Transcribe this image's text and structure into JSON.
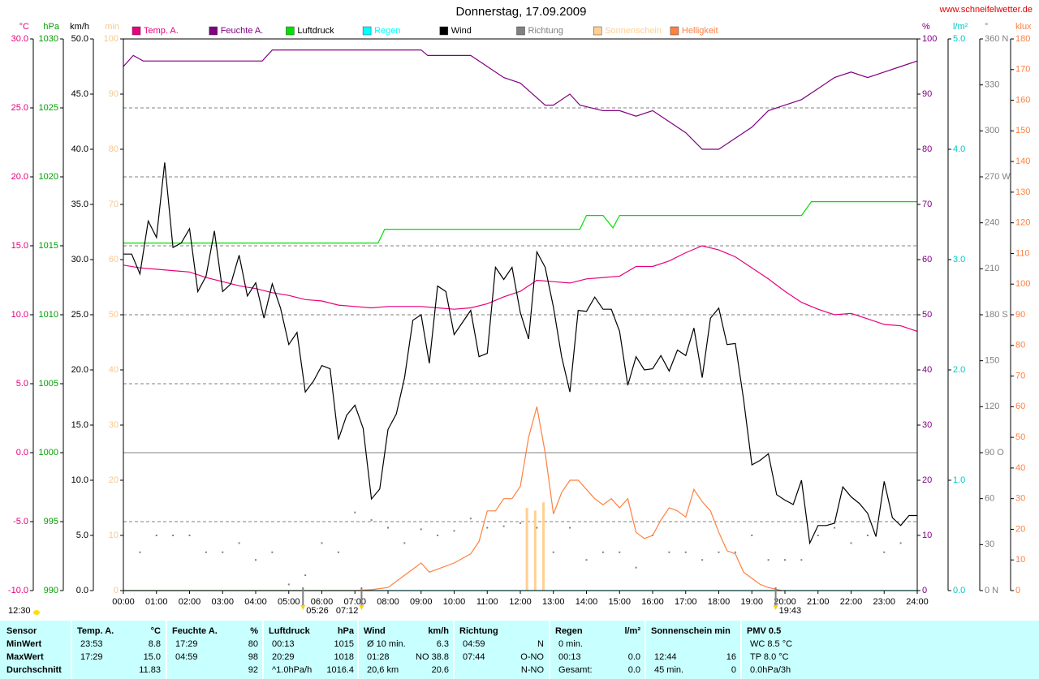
{
  "chart_data": {
    "type": "line",
    "title": "Donnerstag, 17.09.2009",
    "source": "www.schneifelwetter.de",
    "day_length": "12:30",
    "xlim": [
      0,
      24
    ],
    "xticks": [
      {
        "value": 0,
        "label": "00:00"
      },
      {
        "value": 1,
        "label": "01:00"
      },
      {
        "value": 2,
        "label": "02:00"
      },
      {
        "value": 3,
        "label": "03:00"
      },
      {
        "value": 4,
        "label": "04:00"
      },
      {
        "value": 5,
        "label": "05:00"
      },
      {
        "value": 6,
        "label": "06:00"
      },
      {
        "value": 7,
        "label": "07:00"
      },
      {
        "value": 8,
        "label": "08:00"
      },
      {
        "value": 9,
        "label": "09:00"
      },
      {
        "value": 10,
        "label": "10:00"
      },
      {
        "value": 11,
        "label": "11:00"
      },
      {
        "value": 12,
        "label": "12:00"
      },
      {
        "value": 13,
        "label": "13:00"
      },
      {
        "value": 14,
        "label": "14:00"
      },
      {
        "value": 15,
        "label": "15:00"
      },
      {
        "value": 16,
        "label": "16:00"
      },
      {
        "value": 17,
        "label": "17:00"
      },
      {
        "value": 18,
        "label": "18:00"
      },
      {
        "value": 19,
        "label": "19:00"
      },
      {
        "value": 20,
        "label": "20:00"
      },
      {
        "value": 21,
        "label": "21:00"
      },
      {
        "value": 22,
        "label": "22:00"
      },
      {
        "value": 23,
        "label": "23:00"
      },
      {
        "value": 24,
        "label": "24:00"
      }
    ],
    "axes": {
      "y1": {
        "unit": "°C",
        "side": "left",
        "color": "#e8007c",
        "grid": true,
        "lim": [
          -10,
          30
        ],
        "ticks": [
          {
            "value": -10,
            "label": "-10.0"
          },
          {
            "value": -5,
            "label": "-5.0"
          },
          {
            "value": 0,
            "label": "0.0"
          },
          {
            "value": 5,
            "label": "5.0"
          },
          {
            "value": 10,
            "label": "10.0"
          },
          {
            "value": 15,
            "label": "15.0"
          },
          {
            "value": 20,
            "label": "20.0"
          },
          {
            "value": 25,
            "label": "25.0"
          },
          {
            "value": 30,
            "label": "30.0"
          }
        ]
      },
      "y2": {
        "unit": "hPa",
        "side": "left",
        "color": "#00a000",
        "lim": [
          990,
          1030
        ],
        "ticks": [
          990,
          995,
          1000,
          1005,
          1010,
          1015,
          1020,
          1025,
          1030
        ]
      },
      "y3": {
        "unit": "km/h",
        "side": "left",
        "color": "#000000",
        "lim": [
          0,
          50
        ],
        "ticks": [
          {
            "value": 0,
            "label": "0.0"
          },
          {
            "value": 5,
            "label": "5.0"
          },
          {
            "value": 10,
            "label": "10.0"
          },
          {
            "value": 15,
            "label": "15.0"
          },
          {
            "value": 20,
            "label": "20.0"
          },
          {
            "value": 25,
            "label": "25.0"
          },
          {
            "value": 30,
            "label": "30.0"
          },
          {
            "value": 35,
            "label": "35.0"
          },
          {
            "value": 40,
            "label": "40.0"
          },
          {
            "value": 45,
            "label": "45.0"
          },
          {
            "value": 50,
            "label": "50.0"
          }
        ]
      },
      "y4": {
        "unit": "min",
        "side": "left",
        "color": "#f8c890",
        "lim": [
          0,
          100
        ],
        "ticks": [
          0,
          10,
          20,
          30,
          40,
          50,
          60,
          70,
          80,
          90,
          100
        ]
      },
      "y5": {
        "unit": "%",
        "side": "right",
        "color": "#800080",
        "lim": [
          0,
          100
        ],
        "ticks": [
          0,
          10,
          20,
          30,
          40,
          50,
          60,
          70,
          80,
          90,
          100
        ]
      },
      "y6": {
        "unit": "l/m²",
        "side": "right",
        "color": "#00c8c8",
        "lim": [
          0,
          5
        ],
        "ticks": [
          {
            "value": 0,
            "label": "0.0"
          },
          {
            "value": 1,
            "label": "1.0"
          },
          {
            "value": 2,
            "label": "2.0"
          },
          {
            "value": 3,
            "label": "3.0"
          },
          {
            "value": 4,
            "label": "4.0"
          },
          {
            "value": 5,
            "label": "5.0"
          }
        ]
      },
      "y7": {
        "unit": "°",
        "side": "right",
        "color": "#808080",
        "lim": [
          0,
          360
        ],
        "ticks": [
          {
            "value": 0,
            "label": "0 N"
          },
          30,
          60,
          {
            "value": 90,
            "label": "90 O"
          },
          120,
          150,
          {
            "value": 180,
            "label": "180 S"
          },
          210,
          240,
          {
            "value": 270,
            "label": "270 W"
          },
          300,
          330,
          {
            "value": 360,
            "label": "360 N"
          }
        ]
      },
      "y8": {
        "unit": "klux",
        "side": "right",
        "color": "#ff8040",
        "lim": [
          0,
          180
        ],
        "ticks": [
          0,
          10,
          20,
          30,
          40,
          50,
          60,
          70,
          80,
          90,
          100,
          110,
          120,
          130,
          140,
          150,
          160,
          170,
          180
        ]
      }
    },
    "series": [
      {
        "name": "Temp. A.",
        "type": "line",
        "axis": "y1",
        "color": "#e8007c",
        "x": [
          0,
          0.5,
          1,
          1.5,
          2,
          2.5,
          3,
          3.5,
          4,
          4.5,
          5,
          5.5,
          6,
          6.5,
          7,
          7.5,
          8,
          8.5,
          9,
          9.5,
          10,
          10.5,
          11,
          11.5,
          12,
          12.5,
          13,
          13.5,
          14,
          14.5,
          15,
          15.5,
          16,
          16.5,
          17,
          17.5,
          18,
          18.5,
          19,
          19.5,
          20,
          20.5,
          21,
          21.5,
          22,
          22.5,
          23,
          23.5,
          24
        ],
        "values": [
          13.6,
          13.4,
          13.3,
          13.2,
          13.1,
          12.7,
          12.4,
          12.1,
          11.9,
          11.6,
          11.4,
          11.1,
          11.0,
          10.7,
          10.6,
          10.5,
          10.6,
          10.6,
          10.6,
          10.5,
          10.4,
          10.5,
          10.8,
          11.3,
          11.7,
          12.5,
          12.4,
          12.3,
          12.6,
          12.7,
          12.8,
          13.5,
          13.5,
          13.9,
          14.5,
          15.0,
          14.7,
          14.2,
          13.4,
          12.6,
          11.7,
          10.9,
          10.4,
          10.0,
          10.1,
          9.7,
          9.3,
          9.2,
          8.8
        ]
      },
      {
        "name": "Feuchte A.",
        "type": "line",
        "axis": "y5",
        "color": "#800080",
        "x": [
          0,
          0.3,
          0.6,
          4.2,
          4.5,
          9,
          9.2,
          10.5,
          11,
          11.5,
          12,
          12.75,
          13,
          13.5,
          13.8,
          14.5,
          15,
          15.5,
          16,
          16.5,
          17,
          17.5,
          18,
          18.5,
          19,
          19.5,
          20,
          20.5,
          21,
          21.5,
          22,
          22.5,
          23,
          23.5,
          24
        ],
        "values": [
          95,
          97,
          96,
          96,
          98,
          98,
          97,
          97,
          95,
          93,
          92,
          88,
          88,
          90,
          88,
          87,
          87,
          86,
          87,
          85,
          83,
          80,
          80,
          82,
          84,
          87,
          88,
          89,
          91,
          93,
          94,
          93,
          94,
          95,
          96
        ]
      },
      {
        "name": "Luftdruck",
        "type": "line",
        "axis": "y2",
        "color": "#00e000",
        "x": [
          0,
          7.7,
          7.9,
          13.8,
          14,
          14.5,
          14.8,
          15,
          20.5,
          20.8,
          24
        ],
        "values": [
          1015.2,
          1015.2,
          1016.2,
          1016.2,
          1017.2,
          1017.2,
          1016.3,
          1017.2,
          1017.2,
          1018.2,
          1018.2
        ]
      },
      {
        "name": "Regen",
        "type": "line",
        "axis": "y6",
        "color": "#00ffff",
        "x": [
          0,
          24
        ],
        "values": [
          0,
          0
        ]
      },
      {
        "name": "Wind",
        "type": "line",
        "axis": "y3",
        "color": "#000000",
        "x": [
          0,
          0.25,
          0.5,
          0.75,
          1,
          1.25,
          1.5,
          1.75,
          2,
          2.25,
          2.5,
          2.75,
          3,
          3.25,
          3.5,
          3.75,
          4,
          4.25,
          4.5,
          4.75,
          5,
          5.25,
          5.5,
          5.75,
          6,
          6.25,
          6.5,
          6.75,
          7,
          7.25,
          7.5,
          7.75,
          8,
          8.25,
          8.5,
          8.75,
          9,
          9.25,
          9.5,
          9.75,
          10,
          10.25,
          10.5,
          10.75,
          11,
          11.25,
          11.5,
          11.75,
          12,
          12.25,
          12.5,
          12.75,
          13,
          13.25,
          13.5,
          13.75,
          14,
          14.25,
          14.5,
          14.75,
          15,
          15.25,
          15.5,
          15.75,
          16,
          16.25,
          16.5,
          16.75,
          17,
          17.25,
          17.5,
          17.75,
          18,
          18.25,
          18.5,
          18.75,
          19,
          19.25,
          19.5,
          19.75,
          20,
          20.25,
          20.5,
          20.75,
          21,
          21.25,
          21.5,
          21.75,
          22,
          22.25,
          22.5,
          22.75,
          23,
          23.25,
          23.5,
          23.75,
          24
        ],
        "values": [
          30.5,
          30.5,
          28.7,
          33.5,
          32.0,
          38.8,
          31.1,
          31.5,
          32.8,
          27.1,
          28.5,
          32.6,
          27.1,
          27.8,
          30.4,
          26.7,
          27.9,
          24.7,
          27.8,
          25.6,
          22.3,
          23.4,
          18.0,
          19.0,
          20.4,
          20.1,
          13.7,
          15.9,
          16.8,
          14.7,
          8.3,
          9.2,
          14.6,
          16.0,
          19.3,
          24.5,
          25.0,
          20.6,
          27.6,
          27.1,
          23.2,
          24.3,
          25.4,
          21.2,
          21.5,
          29.3,
          28.2,
          29.3,
          25.2,
          22.8,
          30.7,
          29.3,
          25.7,
          21.2,
          18.0,
          25.4,
          25.3,
          26.6,
          25.5,
          25.5,
          23.5,
          18.6,
          21.2,
          20.0,
          20.1,
          21.3,
          19.9,
          21.8,
          21.3,
          23.8,
          19.3,
          24.7,
          25.6,
          22.3,
          22.4,
          17.3,
          11.4,
          11.8,
          12.4,
          8.7,
          8.2,
          7.8,
          10.0,
          4.3,
          5.9,
          5.9,
          6.1,
          9.4,
          8.5,
          7.9,
          7.0,
          4.9,
          9.9,
          6.6,
          5.9,
          6.8,
          6.8
        ]
      },
      {
        "name": "Richtung",
        "type": "scatter",
        "axis": "y7",
        "color": "#808080",
        "x": [
          0.5,
          1,
          1.5,
          2,
          2.5,
          3,
          3.5,
          4,
          4.5,
          5,
          5.5,
          6,
          6.5,
          7,
          7.5,
          8,
          8.5,
          9,
          9.5,
          10,
          10.5,
          11,
          11.5,
          12,
          12.5,
          13,
          13.5,
          14,
          14.5,
          15,
          15.5,
          16,
          16.5,
          17,
          17.5,
          18,
          18.5,
          19,
          19.5,
          20,
          20.5,
          21,
          21.5,
          22,
          22.5,
          23,
          23.5
        ],
        "values": [
          25,
          36,
          36,
          36,
          25,
          25,
          31,
          20,
          25,
          4,
          10,
          31,
          25,
          51,
          46,
          41,
          31,
          40,
          36,
          39,
          47,
          41,
          42,
          44,
          41,
          25,
          41,
          20,
          25,
          25,
          15,
          36,
          25,
          25,
          20,
          25,
          25,
          36,
          20,
          20,
          20,
          36,
          41,
          31,
          36,
          25,
          31
        ]
      },
      {
        "name": "Sonnenschein",
        "type": "bar",
        "axis": "y4",
        "color": "#ffd090",
        "x": [
          12.2,
          12.45,
          12.7
        ],
        "values": [
          15,
          14.5,
          16
        ]
      },
      {
        "name": "Helligkeit",
        "type": "line",
        "axis": "y8",
        "color": "#ff8040",
        "x": [
          0,
          7,
          7.5,
          8,
          8.5,
          9,
          9.25,
          9.5,
          10,
          10.5,
          10.75,
          11,
          11.25,
          11.5,
          11.75,
          12,
          12.25,
          12.5,
          12.75,
          13,
          13.25,
          13.5,
          13.75,
          14,
          14.25,
          14.5,
          14.75,
          15,
          15.25,
          15.5,
          15.75,
          16,
          16.25,
          16.5,
          16.75,
          17,
          17.25,
          17.5,
          17.75,
          18,
          18.25,
          18.5,
          18.75,
          19,
          19.25,
          19.5,
          19.9
        ],
        "values": [
          0,
          0,
          0.3,
          1,
          5,
          9,
          6,
          7,
          9,
          12,
          16,
          26,
          26,
          30,
          30,
          34,
          50,
          60,
          45,
          25,
          32,
          36,
          36,
          33,
          30,
          28,
          30,
          27,
          30,
          19,
          17,
          18,
          23,
          27,
          26,
          24,
          33,
          29,
          26,
          19,
          13,
          12,
          6,
          4,
          2,
          1,
          0
        ]
      }
    ],
    "annotations": [
      {
        "text": "05:26",
        "x": 5.43
      },
      {
        "text": "07:12",
        "x": 7.2
      },
      {
        "text": "19:43",
        "x": 19.72
      }
    ]
  },
  "table": {
    "columns": [
      {
        "title": "Sensor",
        "rows": [
          {
            "left": "MinWert"
          },
          {
            "left": "MaxWert"
          },
          {
            "left": "Durchschnitt"
          }
        ]
      },
      {
        "title": "Temp. A.",
        "unit": "°C",
        "rows": [
          {
            "left": "23:53",
            "right": "8.8"
          },
          {
            "left": "17:29",
            "right": "15.0"
          },
          {
            "right": "11.83"
          }
        ]
      },
      {
        "title": "Feuchte A.",
        "unit": "%",
        "rows": [
          {
            "left": "17:29",
            "right": "80"
          },
          {
            "left": "04:59",
            "right": "98"
          },
          {
            "right": "92"
          }
        ]
      },
      {
        "title": "Luftdruck",
        "unit": "hPa",
        "rows": [
          {
            "left": "00:13",
            "right": "1015"
          },
          {
            "left": "20:29",
            "right": "1018"
          },
          {
            "left": "^1.0hPa/h",
            "right": "1016.4"
          }
        ]
      },
      {
        "title": "Wind",
        "unit": "km/h",
        "rows": [
          {
            "left": "Ø 10 min.",
            "right": "6.3"
          },
          {
            "left": "01:28",
            "right": "NO 38.8"
          },
          {
            "left": "20,6 km",
            "right": "20.6"
          }
        ]
      },
      {
        "title": "Richtung",
        "rows": [
          {
            "left": "04:59",
            "right": "N"
          },
          {
            "left": "07:44",
            "right": "O-NO"
          },
          {
            "right": "N-NO"
          }
        ]
      },
      {
        "title": "Regen",
        "unit": "l/m²",
        "rows": [
          {
            "left": "0 min."
          },
          {
            "left": "00:13",
            "right": "0.0"
          },
          {
            "left": "Gesamt:",
            "right": "0.0"
          }
        ]
      },
      {
        "title": "Sonnenschein min",
        "rows": [
          {},
          {
            "left": "12:44",
            "right": "16"
          },
          {
            "left": "45 min.",
            "right": "0"
          }
        ]
      },
      {
        "title": "PMV 0.5",
        "rows": [
          {
            "left": "WC 8.5 °C"
          },
          {
            "left": "TP 8.0 °C"
          },
          {
            "left": "0.0hPa/3h"
          }
        ]
      }
    ]
  }
}
